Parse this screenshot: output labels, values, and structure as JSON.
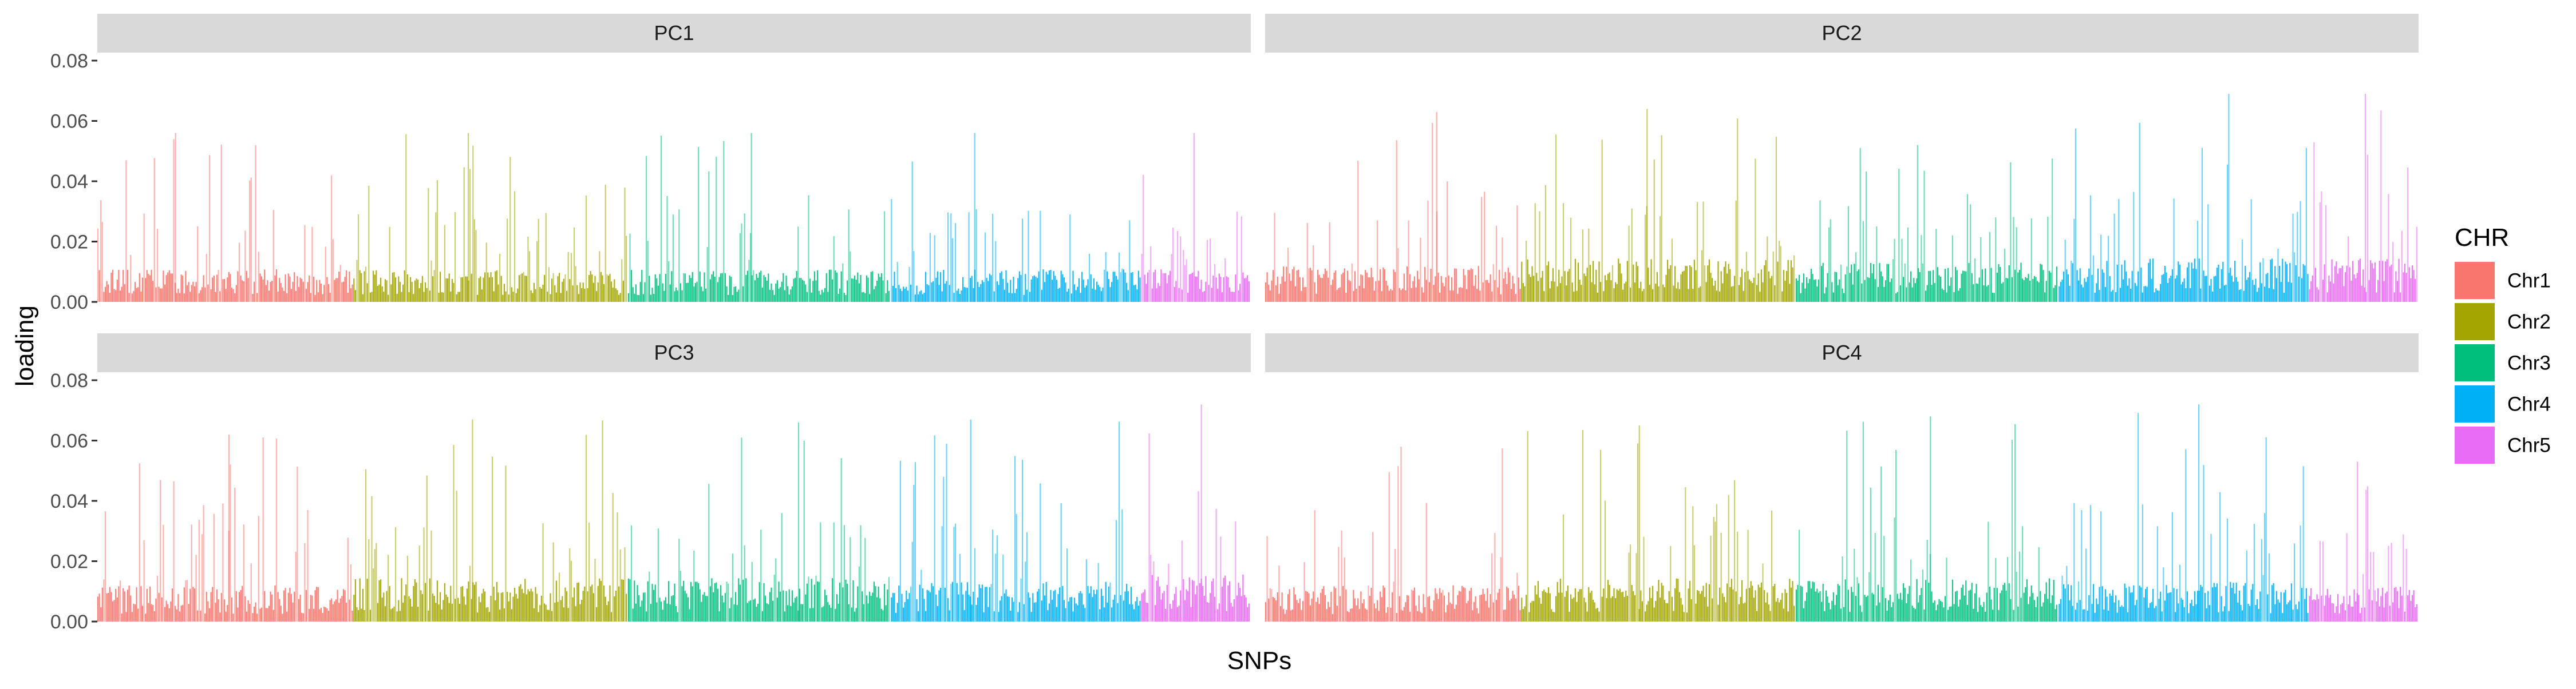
{
  "chart_data": {
    "type": "bar",
    "facets": [
      "PC1",
      "PC2",
      "PC3",
      "PC4"
    ],
    "xlabel": "SNPs",
    "ylabel": "loading",
    "ylim": [
      0,
      0.08
    ],
    "y_ticks": [
      "0.00",
      "0.02",
      "0.04",
      "0.06",
      "0.08"
    ],
    "y_tick_values": [
      0,
      0.02,
      0.04,
      0.06,
      0.08
    ],
    "grid": false,
    "legend": {
      "title": "CHR",
      "position": "right",
      "entries": [
        {
          "name": "Chr1",
          "color": "#F8766D"
        },
        {
          "name": "Chr2",
          "color": "#A3A500"
        },
        {
          "name": "Chr3",
          "color": "#00BF7D"
        },
        {
          "name": "Chr4",
          "color": "#00B0F6"
        },
        {
          "name": "Chr5",
          "color": "#E76BF3"
        }
      ]
    },
    "chromosome_proportions": [
      0.222,
      0.238,
      0.228,
      0.217,
      0.095
    ],
    "series": [
      {
        "facet": "PC1",
        "chr": "Chr1",
        "typical_loading": 0.009,
        "max_loading": 0.056
      },
      {
        "facet": "PC1",
        "chr": "Chr2",
        "typical_loading": 0.009,
        "max_loading": 0.056
      },
      {
        "facet": "PC1",
        "chr": "Chr3",
        "typical_loading": 0.009,
        "max_loading": 0.056
      },
      {
        "facet": "PC1",
        "chr": "Chr4",
        "typical_loading": 0.009,
        "max_loading": 0.056
      },
      {
        "facet": "PC1",
        "chr": "Chr5",
        "typical_loading": 0.009,
        "max_loading": 0.056
      },
      {
        "facet": "PC2",
        "chr": "Chr1",
        "typical_loading": 0.01,
        "max_loading": 0.063
      },
      {
        "facet": "PC2",
        "chr": "Chr2",
        "typical_loading": 0.012,
        "max_loading": 0.064
      },
      {
        "facet": "PC2",
        "chr": "Chr3",
        "typical_loading": 0.011,
        "max_loading": 0.052
      },
      {
        "facet": "PC2",
        "chr": "Chr4",
        "typical_loading": 0.012,
        "max_loading": 0.069
      },
      {
        "facet": "PC2",
        "chr": "Chr5",
        "typical_loading": 0.012,
        "max_loading": 0.069
      },
      {
        "facet": "PC3",
        "chr": "Chr1",
        "typical_loading": 0.01,
        "max_loading": 0.062
      },
      {
        "facet": "PC3",
        "chr": "Chr2",
        "typical_loading": 0.012,
        "max_loading": 0.067
      },
      {
        "facet": "PC3",
        "chr": "Chr3",
        "typical_loading": 0.012,
        "max_loading": 0.066
      },
      {
        "facet": "PC3",
        "chr": "Chr4",
        "typical_loading": 0.011,
        "max_loading": 0.067
      },
      {
        "facet": "PC3",
        "chr": "Chr5",
        "typical_loading": 0.013,
        "max_loading": 0.072
      },
      {
        "facet": "PC4",
        "chr": "Chr1",
        "typical_loading": 0.01,
        "max_loading": 0.058
      },
      {
        "facet": "PC4",
        "chr": "Chr2",
        "typical_loading": 0.012,
        "max_loading": 0.065
      },
      {
        "facet": "PC4",
        "chr": "Chr3",
        "typical_loading": 0.012,
        "max_loading": 0.068
      },
      {
        "facet": "PC4",
        "chr": "Chr4",
        "typical_loading": 0.011,
        "max_loading": 0.072
      },
      {
        "facet": "PC4",
        "chr": "Chr5",
        "typical_loading": 0.01,
        "max_loading": 0.053
      }
    ]
  }
}
